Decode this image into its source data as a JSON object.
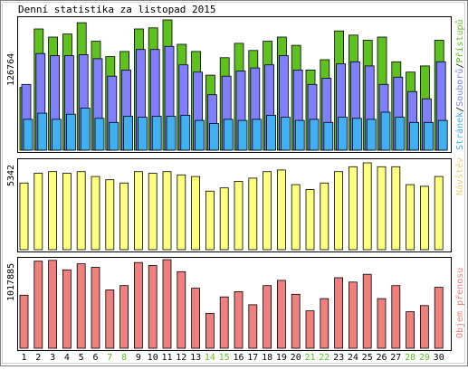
{
  "chart_data": [
    {
      "type": "bar",
      "title": "Denní statistika za listopad 2015",
      "ylabel": "126764",
      "ymax": 126764,
      "legend": "Přístupů/Souborů/Stránek",
      "legend_parts": [
        {
          "text": "Přístupů",
          "color": "#60c020"
        },
        {
          "text": "/",
          "color": "#000000"
        },
        {
          "text": "Souborů",
          "color": "#8080ff"
        },
        {
          "text": "/",
          "color": "#000000"
        },
        {
          "text": "Stránek",
          "color": "#40b0f0"
        }
      ],
      "categories": [
        "1",
        "2",
        "3",
        "4",
        "5",
        "6",
        "7",
        "8",
        "9",
        "10",
        "11",
        "12",
        "13",
        "14",
        "15",
        "16",
        "17",
        "18",
        "19",
        "20",
        "21",
        "22",
        "23",
        "24",
        "25",
        "26",
        "27",
        "28",
        "29",
        "30"
      ],
      "weekend": [
        false,
        false,
        false,
        false,
        false,
        false,
        true,
        true,
        false,
        false,
        false,
        false,
        false,
        true,
        true,
        false,
        false,
        false,
        false,
        false,
        true,
        true,
        false,
        false,
        false,
        false,
        false,
        true,
        true,
        false
      ],
      "series": [
        {
          "name": "Přístupů",
          "color": "#60c020",
          "values": [
            61000,
            118000,
            110000,
            113000,
            124000,
            106000,
            91000,
            96000,
            118000,
            119000,
            126764,
            103000,
            96000,
            73000,
            90000,
            104000,
            97000,
            106000,
            110000,
            102000,
            78000,
            88000,
            116000,
            112000,
            107000,
            110000,
            86000,
            76000,
            82000,
            107000
          ]
        },
        {
          "name": "Souborů",
          "color": "#8080ff",
          "values": [
            64000,
            94000,
            92000,
            92000,
            93000,
            89000,
            72000,
            78000,
            98000,
            98000,
            101000,
            83000,
            76000,
            54000,
            72000,
            77000,
            80000,
            83000,
            92000,
            78000,
            64000,
            70000,
            84000,
            86000,
            82000,
            64000,
            71000,
            57000,
            50000,
            86000
          ]
        },
        {
          "name": "Stránek",
          "color": "#40b0f0",
          "values": [
            30000,
            36000,
            30000,
            35000,
            41000,
            31000,
            27000,
            33000,
            32000,
            33000,
            33000,
            34000,
            29000,
            26000,
            30000,
            29000,
            30000,
            34000,
            32000,
            29000,
            30000,
            27000,
            32000,
            31000,
            30000,
            37000,
            32000,
            27000,
            27000,
            29000
          ]
        }
      ]
    },
    {
      "type": "bar",
      "ylabel": "5342",
      "ymax": 5342,
      "legend": "Návštěv",
      "series": [
        {
          "name": "Návštěv",
          "color": "#ffff80",
          "values": [
            4100,
            4700,
            4800,
            4700,
            4800,
            4500,
            4300,
            4100,
            4800,
            4700,
            4800,
            4600,
            4500,
            3600,
            3800,
            4200,
            4400,
            4800,
            4900,
            4000,
            3700,
            4100,
            4800,
            5100,
            5342,
            5100,
            5100,
            4000,
            3900,
            4500
          ]
        }
      ]
    },
    {
      "type": "bar",
      "ylabel": "1017885",
      "ymax": 1017885,
      "legend": "Objem přenosu",
      "series": [
        {
          "name": "Objem přenosu",
          "color": "#f08080",
          "values": [
            610000,
            1000000,
            1010000,
            900000,
            970000,
            930000,
            670000,
            720000,
            985000,
            950000,
            1017885,
            880000,
            690000,
            400000,
            590000,
            650000,
            500000,
            720000,
            780000,
            620000,
            430000,
            570000,
            810000,
            760000,
            850000,
            570000,
            720000,
            420000,
            490000,
            700000
          ]
        }
      ]
    }
  ]
}
